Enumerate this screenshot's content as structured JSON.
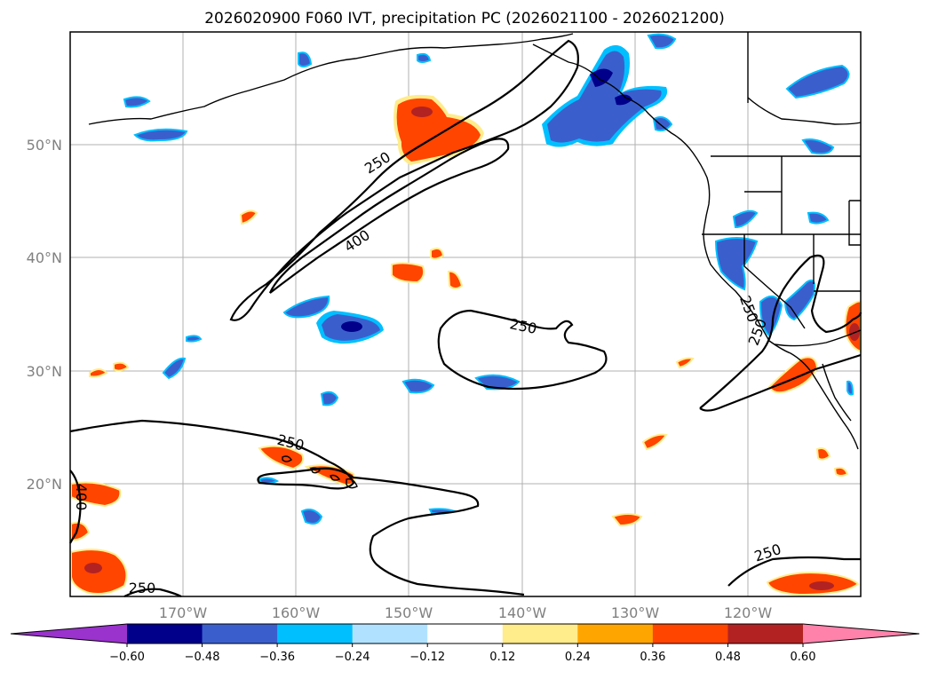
{
  "title": "2026020900 F060 IVT, precipitation PC (2026021100 - 2026021200)",
  "latitude_labels": [
    "50°N",
    "40°N",
    "30°N",
    "20°N"
  ],
  "longitude_labels": [
    "170°W",
    "160°W",
    "150°W",
    "140°W",
    "130°W",
    "120°W"
  ],
  "ivt_contour_labels": [
    "250",
    "250",
    "400",
    "250",
    "250",
    "250",
    "250",
    "250",
    "400",
    "250"
  ],
  "colorbar": {
    "ticks": [
      "−0.60",
      "−0.48",
      "−0.36",
      "−0.24",
      "−0.12",
      "0.12",
      "0.24",
      "0.36",
      "0.48",
      "0.60"
    ],
    "bins": [
      {
        "from": null,
        "to": -0.6,
        "color": "#9a32cd"
      },
      {
        "from": -0.6,
        "to": -0.48,
        "color": "#00008b"
      },
      {
        "from": -0.48,
        "to": -0.36,
        "color": "#3a5fcd"
      },
      {
        "from": -0.36,
        "to": -0.24,
        "color": "#00bfff"
      },
      {
        "from": -0.24,
        "to": -0.12,
        "color": "#b0e2ff"
      },
      {
        "from": -0.12,
        "to": 0.12,
        "color": "#ffffff"
      },
      {
        "from": 0.12,
        "to": 0.24,
        "color": "#ffec8b"
      },
      {
        "from": 0.24,
        "to": 0.36,
        "color": "#ffa500"
      },
      {
        "from": 0.36,
        "to": 0.48,
        "color": "#ff4500"
      },
      {
        "from": 0.48,
        "to": 0.6,
        "color": "#b22222"
      },
      {
        "from": 0.6,
        "to": null,
        "color": "#ff82ab"
      }
    ]
  },
  "map_extent": {
    "lon_min": -180,
    "lon_max": -110,
    "lat_min": 10,
    "lat_max": 60
  },
  "gridlines": true,
  "colors": {
    "grid": "#b0b0b0",
    "coast": "#000000",
    "axis_labels": "#808080"
  }
}
